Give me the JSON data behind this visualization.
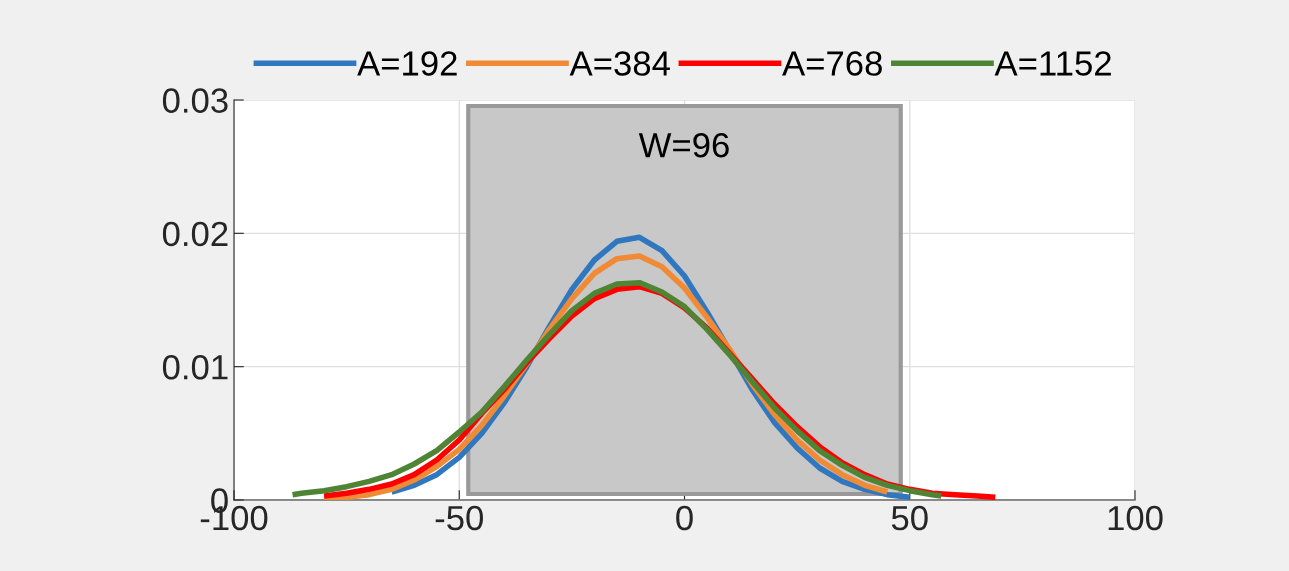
{
  "chart_data": {
    "type": "line",
    "xlim": [
      -100,
      100
    ],
    "ylim": [
      0,
      0.03
    ],
    "xticks": [
      -100,
      -50,
      0,
      50,
      100
    ],
    "yticks": [
      0,
      0.01,
      0.02,
      0.03
    ],
    "grid": true,
    "legend": "top",
    "marker": "none",
    "line_style": "solid",
    "bands": [
      {
        "axis": "x",
        "from": -48,
        "to": 48,
        "label": "W=96",
        "color": "#c8c8c8"
      }
    ],
    "series": [
      {
        "name": "A=192",
        "color": "#2f77bf",
        "x": [
          -65,
          -60,
          -55,
          -50,
          -45,
          -40,
          -35,
          -30,
          -25,
          -20,
          -15,
          -10,
          -5,
          0,
          5,
          10,
          15,
          20,
          25,
          30,
          35,
          40,
          45,
          50
        ],
        "values": [
          0.0006,
          0.0011,
          0.0019,
          0.0032,
          0.005,
          0.0073,
          0.01,
          0.013,
          0.0158,
          0.018,
          0.0194,
          0.0197,
          0.0187,
          0.0168,
          0.0141,
          0.0112,
          0.0083,
          0.0058,
          0.0039,
          0.0024,
          0.0014,
          0.0008,
          0.0004,
          0.0002
        ]
      },
      {
        "name": "A=384",
        "color": "#f08a35",
        "x": [
          -80,
          -75,
          -70,
          -65,
          -60,
          -55,
          -50,
          -45,
          -40,
          -35,
          -30,
          -25,
          -20,
          -15,
          -10,
          -5,
          0,
          5,
          10,
          15,
          20,
          25,
          30,
          35,
          40,
          45
        ],
        "values": [
          0.0001,
          0.0002,
          0.0004,
          0.0008,
          0.0015,
          0.0025,
          0.0038,
          0.0056,
          0.0078,
          0.0102,
          0.0128,
          0.0151,
          0.017,
          0.0181,
          0.0183,
          0.0175,
          0.0159,
          0.0137,
          0.0113,
          0.0087,
          0.0064,
          0.0045,
          0.003,
          0.0019,
          0.0011,
          0.0006
        ]
      },
      {
        "name": "A=768",
        "color": "#ff0000",
        "x": [
          -80,
          -75,
          -70,
          -65,
          -60,
          -55,
          -50,
          -45,
          -40,
          -35,
          -30,
          -25,
          -20,
          -15,
          -10,
          -5,
          0,
          5,
          10,
          15,
          20,
          25,
          30,
          35,
          40,
          45,
          50,
          55,
          60,
          65,
          69
        ],
        "values": [
          0.0003,
          0.0005,
          0.0008,
          0.0012,
          0.0019,
          0.003,
          0.0045,
          0.0065,
          0.0083,
          0.0103,
          0.0121,
          0.0138,
          0.0151,
          0.0158,
          0.016,
          0.0155,
          0.0144,
          0.0129,
          0.011,
          0.0091,
          0.0072,
          0.0055,
          0.004,
          0.0028,
          0.0019,
          0.0012,
          0.0008,
          0.0005,
          0.0004,
          0.0003,
          0.0002
        ]
      },
      {
        "name": "A=1152",
        "color": "#4f8434",
        "x": [
          -87,
          -85,
          -80,
          -75,
          -70,
          -65,
          -60,
          -55,
          -50,
          -45,
          -40,
          -35,
          -30,
          -25,
          -20,
          -15,
          -10,
          -5,
          0,
          5,
          10,
          15,
          20,
          25,
          30,
          35,
          40,
          45,
          50,
          55,
          57
        ],
        "values": [
          0.0004,
          0.0005,
          0.0007,
          0.001,
          0.0014,
          0.0019,
          0.0027,
          0.0037,
          0.0051,
          0.0066,
          0.0085,
          0.0105,
          0.0124,
          0.0142,
          0.0155,
          0.0162,
          0.0163,
          0.0156,
          0.0145,
          0.0128,
          0.0109,
          0.0089,
          0.0069,
          0.0052,
          0.0037,
          0.0026,
          0.0017,
          0.0011,
          0.0007,
          0.0004,
          0.0003
        ]
      }
    ]
  }
}
